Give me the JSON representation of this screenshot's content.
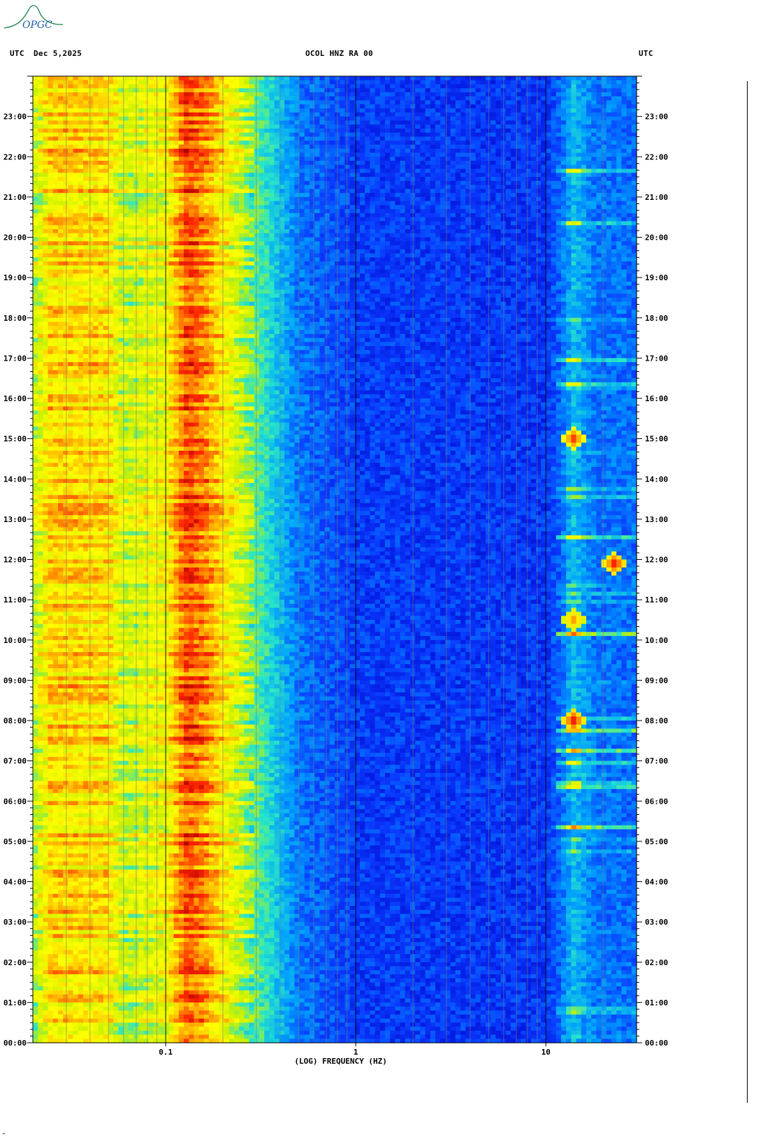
{
  "header": {
    "left_tz": "UTC",
    "date": "Dec 5,2025",
    "station": "OCOL HNZ RA 00",
    "right_tz": "UTC"
  },
  "logo": {
    "text": "OPGC",
    "color": "#2e8b57"
  },
  "corner_mark": "\"",
  "chart_data": {
    "type": "heatmap",
    "title": "OCOL HNZ RA 00",
    "xlabel": "(LOG) FREQUENCY (HZ)",
    "x_scale": "log",
    "xlim": [
      0.02,
      30
    ],
    "x_tick_labels": [
      {
        "value": 0.1,
        "label": "0.1"
      },
      {
        "value": 1,
        "label": "1"
      },
      {
        "value": 10,
        "label": "10"
      }
    ],
    "y_range_hours": [
      0,
      24
    ],
    "y_tick_labels": [
      "00:00",
      "01:00",
      "02:00",
      "03:00",
      "04:00",
      "05:00",
      "06:00",
      "07:00",
      "08:00",
      "09:00",
      "10:00",
      "11:00",
      "12:00",
      "13:00",
      "14:00",
      "15:00",
      "16:00",
      "17:00",
      "18:00",
      "19:00",
      "20:00",
      "21:00",
      "22:00",
      "23:00"
    ],
    "colormap": [
      "#0000c8",
      "#0a3cff",
      "#00a0ff",
      "#28e6c8",
      "#c8f000",
      "#ffff00",
      "#ffa500",
      "#ff2800",
      "#b40000"
    ],
    "energy_profile": [
      {
        "freq": 0.02,
        "level": 0.5
      },
      {
        "freq": 0.025,
        "level": 0.68
      },
      {
        "freq": 0.05,
        "level": 0.66
      },
      {
        "freq": 0.06,
        "level": 0.52
      },
      {
        "freq": 0.1,
        "level": 0.6
      },
      {
        "freq": 0.13,
        "level": 0.85
      },
      {
        "freq": 0.16,
        "level": 0.78
      },
      {
        "freq": 0.2,
        "level": 0.64
      },
      {
        "freq": 0.3,
        "level": 0.42
      },
      {
        "freq": 0.5,
        "level": 0.2
      },
      {
        "freq": 1,
        "level": 0.12
      },
      {
        "freq": 10,
        "level": 0.11
      },
      {
        "freq": 12,
        "level": 0.18
      },
      {
        "freq": 14,
        "level": 0.3
      },
      {
        "freq": 18,
        "level": 0.2
      },
      {
        "freq": 30,
        "level": 0.18
      }
    ],
    "hot_spots": [
      {
        "freq": 14,
        "hour": 15.0,
        "level": 0.9
      },
      {
        "freq": 14,
        "hour": 8.0,
        "level": 0.95
      },
      {
        "freq": 23,
        "hour": 11.9,
        "level": 0.95
      },
      {
        "freq": 14,
        "hour": 10.5,
        "level": 0.8
      }
    ],
    "grid": true
  }
}
